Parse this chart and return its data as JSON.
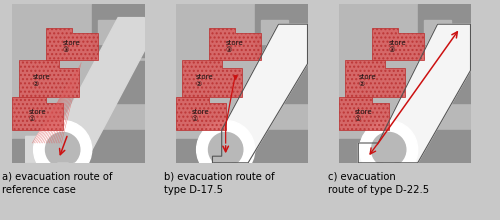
{
  "fig_width": 5.0,
  "fig_height": 2.2,
  "dpi": 100,
  "bg_color": "#c8c8c8",
  "panel_gray": "#b8b8b8",
  "block_dark": "#909090",
  "block_mid": "#a0a0a0",
  "road_light_a": "#d8d8d8",
  "road_white": "#f5f5f5",
  "store_fill": "#d96060",
  "store_edge": "#bb3333",
  "arrow_color": "#cc1111",
  "roundabout_fill": "#e8e8e8",
  "roundabout_ring": "#ffffff",
  "caption_a": "a) evacuation route of\nreference case",
  "caption_b": "b) evacuation route of\ntype D-17.5",
  "caption_c": "c) evacuation\nroute of type D-22.5",
  "font_size": 7.2,
  "label_font_size": 5.0
}
